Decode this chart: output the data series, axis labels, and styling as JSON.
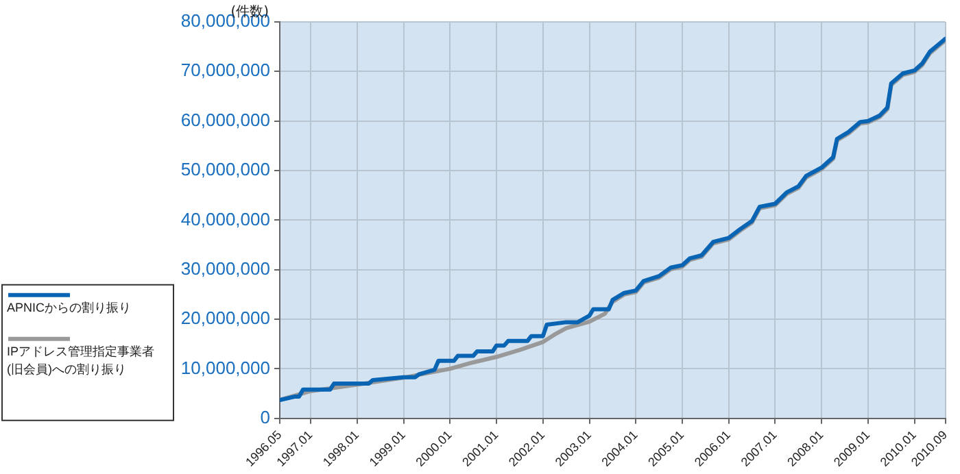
{
  "chart_data": {
    "type": "line",
    "ylabel": "(件数)",
    "legend": "left",
    "grid": true,
    "marker": "none",
    "line_style": "solid",
    "xlim": [
      "1996-05",
      "2010-09"
    ],
    "xticks": [
      {
        "value": "1996-05",
        "label": "1996.05"
      },
      {
        "value": "1997-01",
        "label": "1997.01"
      },
      {
        "value": "1998-01",
        "label": "1998.01"
      },
      {
        "value": "1999-01",
        "label": "1999.01"
      },
      {
        "value": "2000-01",
        "label": "2000.01"
      },
      {
        "value": "2001-01",
        "label": "2001.01"
      },
      {
        "value": "2002-01",
        "label": "2002.01"
      },
      {
        "value": "2003-01",
        "label": "2003.01"
      },
      {
        "value": "2004-01",
        "label": "2004.01"
      },
      {
        "value": "2005-01",
        "label": "2005.01"
      },
      {
        "value": "2006-01",
        "label": "2006.01"
      },
      {
        "value": "2007-01",
        "label": "2007.01"
      },
      {
        "value": "2008-01",
        "label": "2008.01"
      },
      {
        "value": "2009-01",
        "label": "2009.01"
      },
      {
        "value": "2010-01",
        "label": "2010.01"
      },
      {
        "value": "2010-09",
        "label": "2010.09"
      }
    ],
    "ylim": [
      0,
      80000000
    ],
    "yticks": [
      0,
      {
        "value": 10000000,
        "label": "10,000,000"
      },
      {
        "value": 20000000,
        "label": "20,000,000"
      },
      {
        "value": 30000000,
        "label": "30,000,000"
      },
      {
        "value": 40000000,
        "label": "40,000,000"
      },
      {
        "value": 50000000,
        "label": "50,000,000"
      },
      {
        "value": 60000000,
        "label": "60,000,000"
      },
      {
        "value": 70000000,
        "label": "70,000,000"
      },
      {
        "value": 80000000,
        "label": "80,000,000"
      }
    ],
    "series": [
      {
        "name": "IPアドレス管理指定事業者\n(旧会員)への割り振り",
        "color": "#999999",
        "x": [
          "1996-05",
          "1997-01",
          "1998-01",
          "1999-01",
          "2000-01",
          "2000-07",
          "2001-01",
          "2001-07",
          "2002-01",
          "2002-04",
          "2002-07",
          "2003-01",
          "2003-05",
          "2003-07",
          "2003-10",
          "2004-01",
          "2004-03",
          "2004-07",
          "2004-10",
          "2005-01",
          "2005-03",
          "2005-06",
          "2005-09",
          "2006-01",
          "2006-04",
          "2006-07",
          "2006-09",
          "2007-01",
          "2007-04",
          "2007-07",
          "2007-09",
          "2008-01",
          "2008-04",
          "2008-05",
          "2008-08",
          "2008-11",
          "2009-01",
          "2009-04",
          "2009-06",
          "2009-07",
          "2009-10",
          "2010-01",
          "2010-03",
          "2010-05",
          "2010-07",
          "2010-09"
        ],
        "values": [
          3700000,
          5500000,
          6800000,
          8200000,
          10000000,
          11300000,
          12400000,
          13800000,
          15400000,
          16900000,
          18200000,
          19500000,
          21100000,
          23500000,
          25000000,
          25500000,
          27400000,
          28400000,
          30100000,
          30600000,
          32000000,
          32600000,
          35300000,
          36100000,
          37900000,
          39500000,
          42400000,
          43000000,
          45300000,
          46500000,
          48600000,
          50300000,
          52400000,
          56100000,
          57500000,
          59500000,
          59700000,
          60800000,
          62400000,
          67300000,
          69300000,
          69900000,
          71300000,
          73700000,
          75000000,
          76300000
        ]
      },
      {
        "name": "APNICからの割り振り",
        "color": "#0a64b4",
        "x": [
          "1996-05",
          "1996-09",
          "1996-10",
          "1996-11",
          "1997-01",
          "1997-06",
          "1997-07",
          "1998-01",
          "1998-04",
          "1998-05",
          "1999-01",
          "1999-04",
          "1999-05",
          "1999-09",
          "1999-10",
          "2000-02",
          "2000-03",
          "2000-07",
          "2000-08",
          "2000-12",
          "2001-01",
          "2001-03",
          "2001-04",
          "2001-09",
          "2001-10",
          "2002-01",
          "2002-02",
          "2002-07",
          "2002-10",
          "2003-01",
          "2003-02",
          "2003-06",
          "2003-07",
          "2003-10",
          "2004-01",
          "2004-03",
          "2004-07",
          "2004-10",
          "2005-01",
          "2005-03",
          "2005-06",
          "2005-09",
          "2006-01",
          "2006-04",
          "2006-07",
          "2006-09",
          "2007-01",
          "2007-04",
          "2007-07",
          "2007-09",
          "2008-01",
          "2008-04",
          "2008-05",
          "2008-08",
          "2008-11",
          "2009-01",
          "2009-04",
          "2009-06",
          "2009-07",
          "2009-10",
          "2010-01",
          "2010-03",
          "2010-05",
          "2010-07",
          "2010-09"
        ],
        "values": [
          3700000,
          4400000,
          4400000,
          5800000,
          5800000,
          5800000,
          7000000,
          7000000,
          7000000,
          7700000,
          8300000,
          8300000,
          8900000,
          9800000,
          11600000,
          11600000,
          12600000,
          12600000,
          13500000,
          13500000,
          14700000,
          14700000,
          15600000,
          15600000,
          16600000,
          16600000,
          18900000,
          19400000,
          19400000,
          20700000,
          22000000,
          22000000,
          23900000,
          25300000,
          25800000,
          27700000,
          28700000,
          30400000,
          30900000,
          32300000,
          32900000,
          35600000,
          36400000,
          38200000,
          39800000,
          42700000,
          43300000,
          45600000,
          46800000,
          48900000,
          50600000,
          52700000,
          56400000,
          57800000,
          59800000,
          60000000,
          61100000,
          62700000,
          67600000,
          69600000,
          70200000,
          71600000,
          74000000,
          75300000,
          76600000
        ]
      }
    ]
  }
}
